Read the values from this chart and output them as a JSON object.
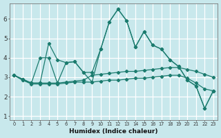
{
  "xlabel": "Humidex (Indice chaleur)",
  "background_color": "#c8e8ec",
  "grid_color": "#ffffff",
  "line_color": "#1b7b6e",
  "xlim": [
    -0.5,
    23.5
  ],
  "ylim": [
    0.8,
    6.8
  ],
  "xticks": [
    0,
    1,
    2,
    3,
    4,
    5,
    6,
    7,
    8,
    9,
    10,
    11,
    12,
    13,
    14,
    15,
    16,
    17,
    18,
    19,
    20,
    21,
    22,
    23
  ],
  "yticks": [
    1,
    2,
    3,
    4,
    5,
    6
  ],
  "line1_y": [
    3.1,
    2.9,
    2.7,
    2.7,
    4.75,
    3.9,
    3.75,
    3.8,
    3.25,
    3.25,
    4.45,
    5.85,
    6.5,
    5.9,
    4.55,
    5.35,
    4.65,
    4.45,
    3.9,
    3.55,
    2.85,
    2.55,
    1.4,
    2.3
  ],
  "line2_y": [
    3.1,
    2.9,
    2.7,
    4.0,
    4.0,
    2.7,
    3.75,
    3.8,
    3.25,
    2.75,
    4.45,
    5.85,
    6.5,
    5.9,
    4.55,
    5.35,
    4.65,
    4.45,
    3.9,
    3.55,
    2.85,
    2.55,
    1.4,
    2.3
  ],
  "line3_y": [
    3.1,
    2.85,
    2.7,
    2.7,
    2.7,
    2.7,
    2.75,
    2.8,
    2.85,
    3.1,
    3.15,
    3.2,
    3.25,
    3.3,
    3.3,
    3.35,
    3.4,
    3.45,
    3.5,
    3.5,
    3.4,
    3.3,
    3.15,
    3.0
  ],
  "line4_y": [
    3.1,
    2.85,
    2.65,
    2.65,
    2.65,
    2.65,
    2.7,
    2.75,
    2.75,
    2.75,
    2.8,
    2.85,
    2.85,
    2.9,
    2.95,
    2.95,
    3.0,
    3.05,
    3.1,
    3.1,
    2.95,
    2.7,
    2.4,
    2.3
  ]
}
